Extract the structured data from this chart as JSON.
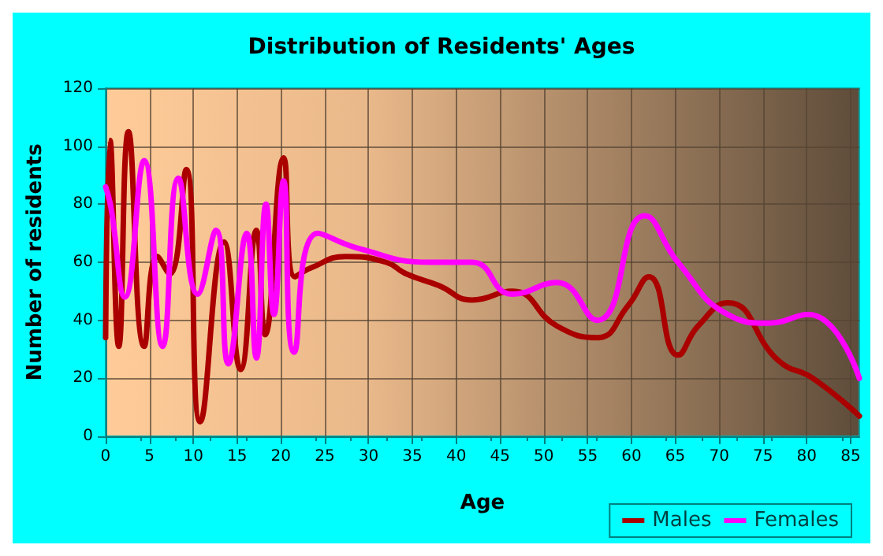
{
  "chart_data": {
    "type": "line",
    "title": "Distribution of Residents' Ages",
    "xlabel": "Age",
    "ylabel": "Number of residents",
    "xlim": [
      0,
      86
    ],
    "xticks": [
      0,
      5,
      10,
      15,
      20,
      25,
      30,
      35,
      40,
      45,
      50,
      55,
      60,
      65,
      70,
      75,
      80,
      85
    ],
    "ylim": [
      0,
      120
    ],
    "yticks": [
      0,
      20,
      40,
      60,
      80,
      100,
      120
    ],
    "grid": true,
    "legend": "bottom right",
    "marker": "none",
    "line_style": "solid",
    "series": [
      {
        "name": "Males",
        "color": "#aa0000",
        "x": [
          0,
          0.5,
          1.5,
          2.6,
          4.4,
          5.9,
          7.3,
          9.2,
          10.8,
          13.5,
          15.4,
          17.2,
          18.2,
          20.3,
          21.6,
          23.4,
          27.4,
          32,
          34.3,
          38,
          41.8,
          46.4,
          51.5,
          56.1,
          59.6,
          62,
          65.3,
          67.6,
          71,
          76.8,
          80.7,
          86
        ],
        "values": [
          34,
          102,
          31,
          105,
          31,
          62,
          56,
          92,
          5,
          67,
          23,
          71,
          35,
          96,
          55,
          58,
          62,
          60,
          56,
          52,
          47,
          50,
          38,
          34,
          45,
          55,
          28,
          38,
          46,
          26,
          20,
          7
        ]
      },
      {
        "name": "Females",
        "color": "#ff00ff",
        "x": [
          0,
          0.6,
          2.2,
          4.4,
          6.5,
          8.3,
          10.5,
          12.6,
          14,
          16.1,
          17.2,
          18.3,
          19.2,
          20.3,
          21.5,
          24.2,
          28.6,
          37,
          41.8,
          46.4,
          51.5,
          56.1,
          61.5,
          65.3,
          71,
          75.6,
          80.2,
          86
        ],
        "values": [
          86,
          79,
          48,
          95,
          31,
          89,
          49,
          71,
          25,
          70,
          27,
          80,
          42,
          88,
          29,
          70,
          65,
          60,
          60,
          49,
          53,
          40,
          76,
          60,
          42,
          39,
          42,
          20
        ]
      }
    ]
  }
}
